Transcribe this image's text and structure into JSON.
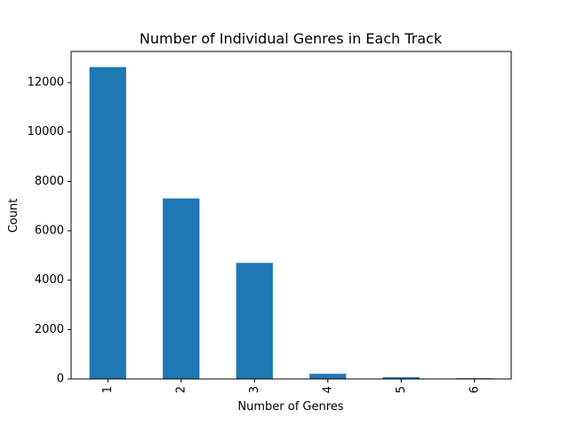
{
  "chart_data": {
    "type": "bar",
    "title": "Number of Individual Genres in Each Track",
    "xlabel": "Number of Genres",
    "ylabel": "Count",
    "categories": [
      "1",
      "2",
      "3",
      "4",
      "5",
      "6"
    ],
    "values": [
      12630,
      7310,
      4700,
      210,
      70,
      30
    ],
    "ylim": [
      0,
      13260
    ],
    "yticks": [
      0,
      2000,
      4000,
      6000,
      8000,
      10000,
      12000
    ],
    "ytick_labels": [
      "0",
      "2000",
      "4000",
      "6000",
      "8000",
      "10000",
      "12000"
    ],
    "x_tick_rotation": 90,
    "grid": false,
    "bar_color": "#1f77b4"
  }
}
